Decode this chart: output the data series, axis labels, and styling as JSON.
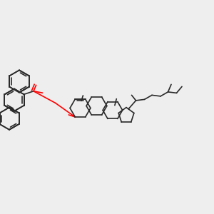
{
  "background_color": "#eeeeee",
  "bond_color": "#2a2a2a",
  "oxygen_color": "#ff0000",
  "lw": 1.2,
  "figsize": [
    3.0,
    3.0
  ],
  "dpi": 100
}
